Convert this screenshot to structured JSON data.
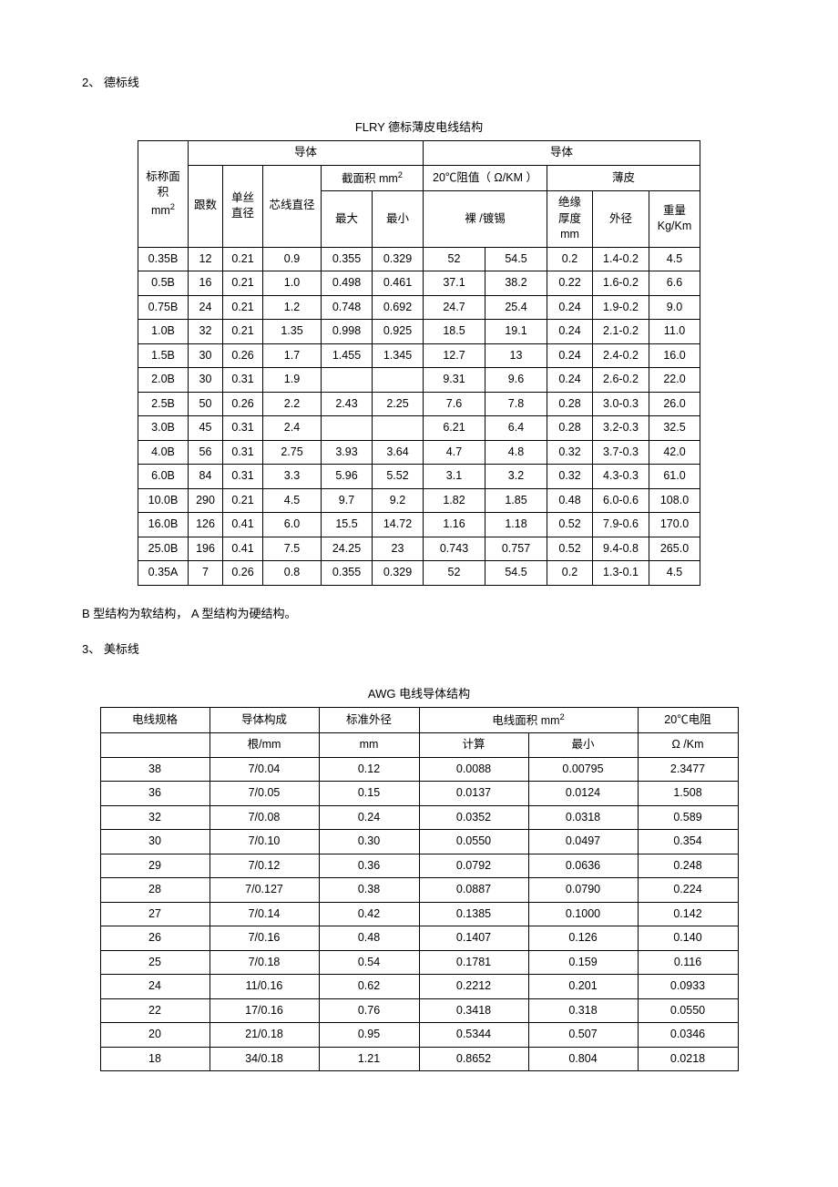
{
  "section2": {
    "heading": "2、 德标线",
    "tableTitle": "FLRY  德标薄皮电线结构",
    "headers": {
      "c0": "标称面积 mm",
      "c0sup": "2",
      "g1": "导体",
      "g2": "导体",
      "c1": "跟数",
      "c2": "单丝直径",
      "c3": "芯线直径",
      "c4g": "截面积  mm",
      "c4gsup": "2",
      "c5g": "20℃阻值（ Ω/KM ）",
      "c6g": "薄皮",
      "c4a": "最大",
      "c4b": "最小",
      "c5a": "裸 /镀锡",
      "c6a": "绝缘厚度 mm",
      "c6b": "外径",
      "c6c": "重量 Kg/Km"
    },
    "rows": [
      [
        "0.35B",
        "12",
        "0.21",
        "0.9",
        "0.355",
        "0.329",
        "52",
        "54.5",
        "0.2",
        "1.4-0.2",
        "4.5"
      ],
      [
        "0.5B",
        "16",
        "0.21",
        "1.0",
        "0.498",
        "0.461",
        "37.1",
        "38.2",
        "0.22",
        "1.6-0.2",
        "6.6"
      ],
      [
        "0.75B",
        "24",
        "0.21",
        "1.2",
        "0.748",
        "0.692",
        "24.7",
        "25.4",
        "0.24",
        "1.9-0.2",
        "9.0"
      ],
      [
        "1.0B",
        "32",
        "0.21",
        "1.35",
        "0.998",
        "0.925",
        "18.5",
        "19.1",
        "0.24",
        "2.1-0.2",
        "11.0"
      ],
      [
        "1.5B",
        "30",
        "0.26",
        "1.7",
        "1.455",
        "1.345",
        "12.7",
        "13",
        "0.24",
        "2.4-0.2",
        "16.0"
      ],
      [
        "2.0B",
        "30",
        "0.31",
        "1.9",
        "",
        "",
        "9.31",
        "9.6",
        "0.24",
        "2.6-0.2",
        "22.0"
      ],
      [
        "2.5B",
        "50",
        "0.26",
        "2.2",
        "2.43",
        "2.25",
        "7.6",
        "7.8",
        "0.28",
        "3.0-0.3",
        "26.0"
      ],
      [
        "3.0B",
        "45",
        "0.31",
        "2.4",
        "",
        "",
        "6.21",
        "6.4",
        "0.28",
        "3.2-0.3",
        "32.5"
      ],
      [
        "4.0B",
        "56",
        "0.31",
        "2.75",
        "3.93",
        "3.64",
        "4.7",
        "4.8",
        "0.32",
        "3.7-0.3",
        "42.0"
      ],
      [
        "6.0B",
        "84",
        "0.31",
        "3.3",
        "5.96",
        "5.52",
        "3.1",
        "3.2",
        "0.32",
        "4.3-0.3",
        "61.0"
      ],
      [
        "10.0B",
        "290",
        "0.21",
        "4.5",
        "9.7",
        "9.2",
        "1.82",
        "1.85",
        "0.48",
        "6.0-0.6",
        "108.0"
      ],
      [
        "16.0B",
        "126",
        "0.41",
        "6.0",
        "15.5",
        "14.72",
        "1.16",
        "1.18",
        "0.52",
        "7.9-0.6",
        "170.0"
      ],
      [
        "25.0B",
        "196",
        "0.41",
        "7.5",
        "24.25",
        "23",
        "0.743",
        "0.757",
        "0.52",
        "9.4-0.8",
        "265.0"
      ],
      [
        "0.35A",
        "7",
        "0.26",
        "0.8",
        "0.355",
        "0.329",
        "52",
        "54.5",
        "0.2",
        "1.3-0.1",
        "4.5"
      ]
    ],
    "note": "B 型结构为软结构，    A 型结构为硬结构。"
  },
  "section3": {
    "heading": "3、 美标线",
    "tableTitle": "AWG 电线导体结构",
    "headers": {
      "c0a": "电线规格",
      "c1a": "导体构成",
      "c1b": "根/mm",
      "c2a": "标准外径",
      "c2b": "mm",
      "c3g": "电线面积    mm",
      "c3gsup": "2",
      "c3a": "计算",
      "c3b": "最小",
      "c4a": "20℃电阻",
      "c4b": "Ω /Km"
    },
    "rows": [
      [
        "38",
        "7/0.04",
        "0.12",
        "0.0088",
        "0.00795",
        "2.3477"
      ],
      [
        "36",
        "7/0.05",
        "0.15",
        "0.0137",
        "0.0124",
        "1.508"
      ],
      [
        "32",
        "7/0.08",
        "0.24",
        "0.0352",
        "0.0318",
        "0.589"
      ],
      [
        "30",
        "7/0.10",
        "0.30",
        "0.0550",
        "0.0497",
        "0.354"
      ],
      [
        "29",
        "7/0.12",
        "0.36",
        "0.0792",
        "0.0636",
        "0.248"
      ],
      [
        "28",
        "7/0.127",
        "0.38",
        "0.0887",
        "0.0790",
        "0.224"
      ],
      [
        "27",
        "7/0.14",
        "0.42",
        "0.1385",
        "0.1000",
        "0.142"
      ],
      [
        "26",
        "7/0.16",
        "0.48",
        "0.1407",
        "0.126",
        "0.140"
      ],
      [
        "25",
        "7/0.18",
        "0.54",
        "0.1781",
        "0.159",
        "0.116"
      ],
      [
        "24",
        "11/0.16",
        "0.62",
        "0.2212",
        "0.201",
        "0.0933"
      ],
      [
        "22",
        "17/0.16",
        "0.76",
        "0.3418",
        "0.318",
        "0.0550"
      ],
      [
        "20",
        "21/0.18",
        "0.95",
        "0.5344",
        "0.507",
        "0.0346"
      ],
      [
        "18",
        "34/0.18",
        "1.21",
        "0.8652",
        "0.804",
        "0.0218"
      ]
    ]
  },
  "style": {
    "colWidthsT1": [
      55,
      38,
      44,
      64,
      56,
      56,
      68,
      68,
      50,
      62,
      56
    ],
    "colWidthsT2": [
      120,
      120,
      110,
      120,
      120,
      110
    ]
  }
}
